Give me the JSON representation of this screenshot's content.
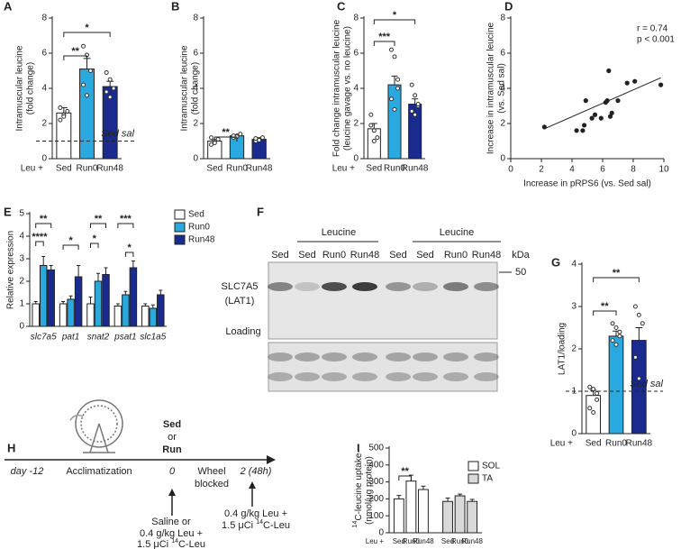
{
  "chart_data": [
    {
      "type": "bar",
      "label": "A",
      "categories": [
        "Sed",
        "Run0",
        "Run48"
      ],
      "x_label": "Leu +",
      "ylabel": [
        "Intramuscular leucine",
        "(fold change)"
      ],
      "values": [
        2.6,
        5.1,
        4.1
      ],
      "errors": [
        0.3,
        0.6,
        0.3
      ],
      "points": [
        [
          2.2,
          2.5,
          2.7,
          2.9,
          2.4
        ],
        [
          6.4,
          5.9,
          5.0,
          4.2,
          3.6
        ],
        [
          4.9,
          4.5,
          4.0,
          3.8,
          3.5
        ]
      ],
      "colors": [
        "#ffffff",
        "#2aa9e0",
        "#1a2b8f"
      ],
      "ylim": [
        0,
        8
      ],
      "yticks": [
        0,
        2,
        4,
        6,
        8
      ],
      "reference_line": {
        "value": 1,
        "label": "Sed sal"
      },
      "significance": [
        "*",
        "**"
      ]
    },
    {
      "type": "bar",
      "label": "B",
      "categories": [
        "Sed",
        "Run0",
        "Run48"
      ],
      "ylabel": [
        "Intramuscular leucine",
        "(fold change)"
      ],
      "values": [
        1.0,
        1.3,
        1.1
      ],
      "errors": [
        0.08,
        0.05,
        0.05
      ],
      "points": [
        [
          0.8,
          1.0,
          1.1,
          1.2,
          0.9
        ],
        [
          1.2,
          1.3,
          1.4,
          1.3,
          1.25
        ],
        [
          1.0,
          1.1,
          1.2,
          1.15,
          1.05
        ]
      ],
      "colors": [
        "#ffffff",
        "#2aa9e0",
        "#1a2b8f"
      ],
      "ylim": [
        0,
        8
      ],
      "yticks": [
        0,
        2,
        4,
        6,
        8
      ],
      "significance": [
        "**"
      ]
    },
    {
      "type": "bar",
      "label": "C",
      "categories": [
        "Sed",
        "Run0",
        "Run48"
      ],
      "x_label": "Leu +",
      "ylabel": [
        "Fold change intramuscular leucine",
        "(leucine gavage vs. no leucine)"
      ],
      "values": [
        1.7,
        4.2,
        3.1
      ],
      "errors": [
        0.3,
        0.5,
        0.3
      ],
      "points": [
        [
          2.5,
          1.6,
          1.2,
          1.9,
          1.0
        ],
        [
          6.2,
          5.8,
          4.5,
          3.4,
          2.8,
          4.0
        ],
        [
          4.2,
          3.6,
          3.0,
          2.7,
          2.5,
          3.1
        ]
      ],
      "colors": [
        "#ffffff",
        "#2aa9e0",
        "#1a2b8f"
      ],
      "ylim": [
        0,
        8
      ],
      "yticks": [
        0,
        2,
        4,
        6,
        8
      ],
      "significance": [
        "*",
        "***"
      ]
    },
    {
      "type": "scatter",
      "label": "D",
      "x": [
        2.2,
        4.3,
        4.7,
        4.8,
        4.9,
        5.3,
        5.5,
        5.9,
        6.2,
        6.3,
        6.4,
        6.5,
        6.6,
        7.0,
        7.6,
        8.1,
        9.8
      ],
      "y": [
        1.8,
        1.6,
        1.6,
        1.9,
        3.3,
        2.3,
        2.5,
        2.3,
        3.2,
        3.3,
        5.0,
        2.4,
        2.6,
        3.3,
        4.3,
        4.4,
        4.2
      ],
      "trendline": {
        "x": [
          2.2,
          9.8
        ],
        "y": [
          1.7,
          4.6
        ]
      },
      "xlim": [
        0,
        10
      ],
      "xticks": [
        0,
        2,
        4,
        6,
        8,
        10
      ],
      "ylim": [
        0,
        8
      ],
      "yticks": [
        0,
        2,
        4,
        6,
        8
      ],
      "xlabel": "Increase in pRPS6 (vs. Sed sal)",
      "ylabel": [
        "Increase in intramuscular leucine",
        "(vs. Sed sal)"
      ],
      "annotations": [
        "r = 0.74",
        "p < 0.001"
      ]
    },
    {
      "type": "grouped",
      "label": "E",
      "categories": [
        "slc7a5",
        "pat1",
        "snat2",
        "psat1",
        "slc1a5"
      ],
      "series": [
        {
          "name": "Sed",
          "color": "#ffffff",
          "values": [
            1.0,
            1.0,
            1.0,
            0.9,
            0.9
          ],
          "errors": [
            0.1,
            0.1,
            0.3,
            0.1,
            0.1
          ]
        },
        {
          "name": "Run0",
          "color": "#2aa9e0",
          "values": [
            2.7,
            1.2,
            2.0,
            1.4,
            0.8
          ],
          "errors": [
            0.4,
            0.15,
            0.35,
            0.15,
            0.15
          ]
        },
        {
          "name": "Run48",
          "color": "#1a2b8f",
          "values": [
            2.5,
            2.2,
            2.3,
            2.6,
            1.4
          ],
          "errors": [
            0.2,
            0.5,
            0.3,
            0.3,
            0.2
          ]
        }
      ],
      "ylim": [
        0,
        5
      ],
      "yticks": [
        0,
        1,
        2,
        3,
        4,
        5
      ],
      "ylabel": "Relative expression",
      "legend": "upper right",
      "significance": [
        "**",
        "****",
        "*",
        "**",
        "*",
        "***",
        "*"
      ]
    },
    {
      "type": "bar",
      "label": "G",
      "categories": [
        "Sed",
        "Run0",
        "Run48"
      ],
      "x_label": "Leu +",
      "ylabel": [
        "LAT1/loading"
      ],
      "values": [
        0.9,
        2.3,
        2.2
      ],
      "errors": [
        0.12,
        0.12,
        0.3
      ],
      "points": [
        [
          1.1,
          1.05,
          0.8,
          0.6,
          0.5,
          0.95
        ],
        [
          2.6,
          2.5,
          2.3,
          2.2,
          2.1,
          2.4
        ],
        [
          3.0,
          2.8,
          2.6,
          1.8,
          1.3
        ]
      ],
      "colors": [
        "#ffffff",
        "#2aa9e0",
        "#1a2b8f"
      ],
      "ylim": [
        0,
        4
      ],
      "yticks": [
        0,
        1,
        2,
        3,
        4
      ],
      "reference_line": {
        "value": 1,
        "label": "Sed sal"
      },
      "significance": [
        "**",
        "**"
      ]
    },
    {
      "type": "clustered",
      "label": "I",
      "categories": [
        "Sed",
        "Run0",
        "Run48"
      ],
      "x_label": "Leu +",
      "series": [
        {
          "name": "SOL",
          "color": "#ffffff",
          "values": [
            200,
            305,
            255
          ],
          "errors": [
            20,
            35,
            20
          ]
        },
        {
          "name": "TA",
          "color": "#d9d9d9",
          "values": [
            185,
            218,
            185
          ],
          "errors": [
            20,
            10,
            12
          ]
        }
      ],
      "ylim": [
        0,
        500
      ],
      "yticks": [
        0,
        100,
        200,
        300,
        400,
        500
      ],
      "ylabel": [
        {
          "sup": "14",
          "main": "C-leucine uptake"
        },
        "(nmol/μg protein)"
      ],
      "legend": "upper right",
      "significance": [
        "**"
      ]
    }
  ],
  "blot": {
    "label": "F",
    "groups": [
      "Leucine",
      "Leucine"
    ],
    "lanes": [
      "Sed",
      "Sed",
      "Run0",
      "Run48",
      "Sed",
      "Sed",
      "Run0",
      "Run48"
    ],
    "unit": "kDa",
    "marker": "50",
    "rows": [
      [
        "SLC7A5",
        "(LAT1)"
      ],
      [
        "Loading"
      ]
    ]
  },
  "timeline": {
    "label": "H",
    "start": "day -12",
    "phase": "Acclimatization",
    "condition": [
      "Sed",
      "or",
      "Run"
    ],
    "day0": "0",
    "blocked": [
      "Wheel",
      "blocked"
    ],
    "day2": "2 (48h)",
    "dose0": [
      "Saline or",
      "0.4 g/kg Leu +",
      {
        "pre": "1.5 μCi ",
        "sup": "14",
        "post": "C-Leu"
      }
    ],
    "dose2": [
      "0.4 g/kg Leu +",
      {
        "pre": "1.5 μCi ",
        "sup": "14",
        "post": "C-Leu"
      }
    ]
  }
}
